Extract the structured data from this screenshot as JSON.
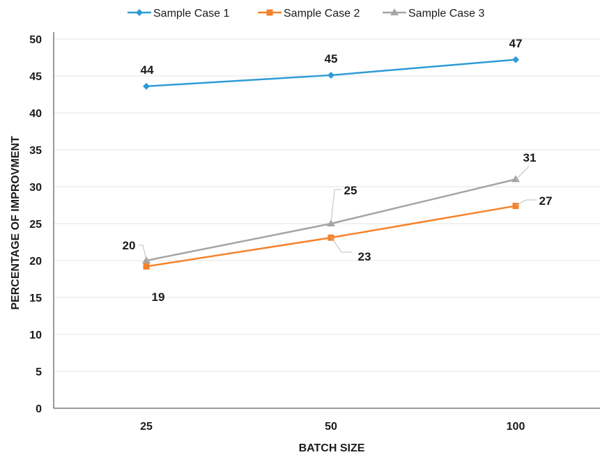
{
  "chart_data": {
    "type": "line",
    "categories": [
      "25",
      "50",
      "100"
    ],
    "series": [
      {
        "name": "Sample Case 1",
        "values": [
          43.6,
          45.1,
          47.2
        ],
        "labels": [
          "44",
          "45",
          "47"
        ],
        "color": "#2E9BD6",
        "marker": "diamond"
      },
      {
        "name": "Sample Case 2",
        "values": [
          19.2,
          23.1,
          27.4
        ],
        "labels": [
          "19",
          "23",
          "27"
        ],
        "color": "#F5822A",
        "marker": "square"
      },
      {
        "name": "Sample Case 3",
        "values": [
          20.0,
          25.0,
          31.0
        ],
        "labels": [
          "20",
          "25",
          "31"
        ],
        "color": "#A5A5A5",
        "marker": "triangle"
      }
    ],
    "xlabel": "BATCH SIZE",
    "ylabel": "PERCENTAGE OF IMPROVMENT",
    "ylim": [
      0,
      50
    ],
    "yticks": [
      "0",
      "5",
      "10",
      "15",
      "20",
      "25",
      "30",
      "35",
      "40",
      "45",
      "50"
    ],
    "grid": true,
    "legend_position": "top"
  }
}
